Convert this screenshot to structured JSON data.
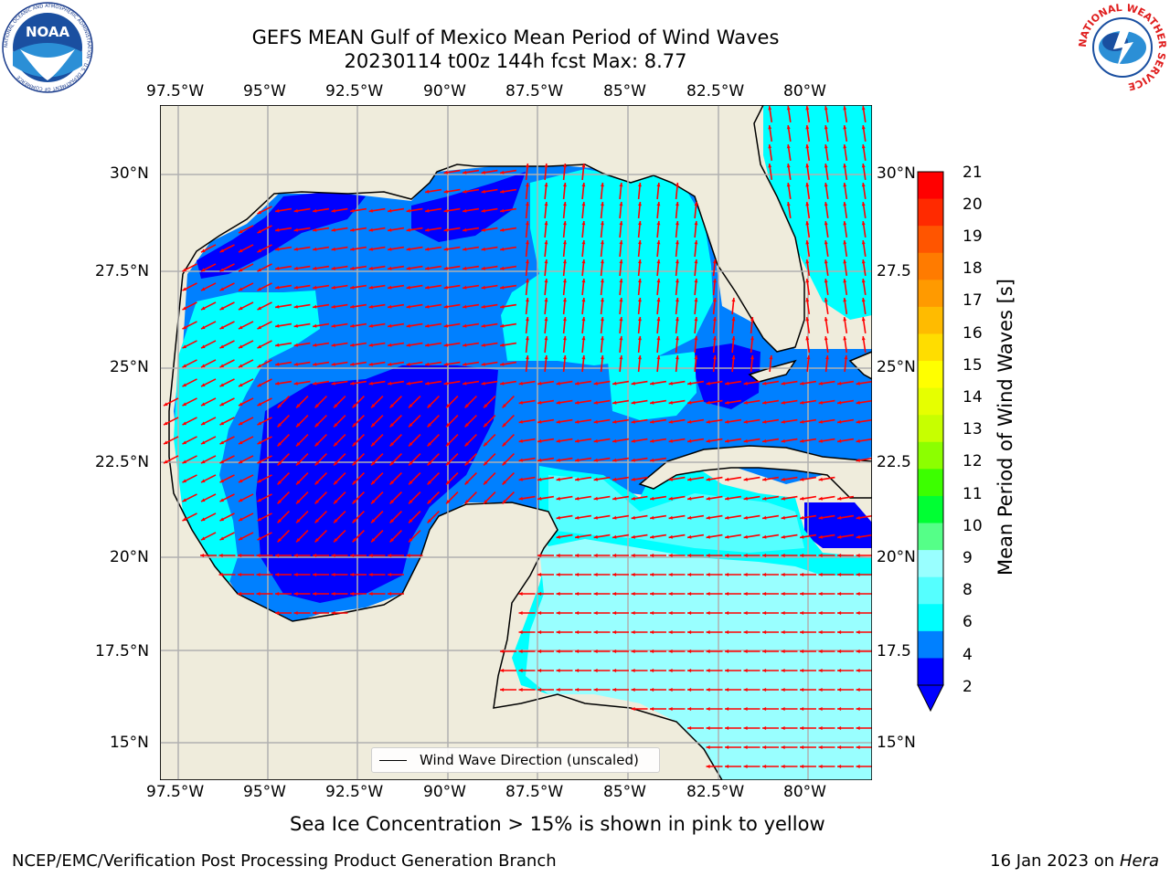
{
  "title_line1": "GEFS MEAN Gulf of Mexico Mean Period of Wind Waves",
  "title_line2": "20230114 t00z 144h fcst   Max: 8.77",
  "lon_labels": [
    "97.5°W",
    "95°W",
    "92.5°W",
    "90°W",
    "87.5°W",
    "85°W",
    "82.5°W",
    "80°W"
  ],
  "lat_labels_left": [
    "30°N",
    "27.5°N",
    "25°N",
    "22.5°N",
    "20°N",
    "17.5°N",
    "15°N"
  ],
  "lat_labels_right": [
    "30°N",
    "27.5",
    "25°N",
    "22.5",
    "20°N",
    "17.5",
    "15°N"
  ],
  "colorbar": {
    "title": "Mean Period of Wind Waves [s]",
    "ticks": [
      "21",
      "20",
      "19",
      "18",
      "17",
      "16",
      "15",
      "14",
      "13",
      "12",
      "11",
      "10",
      "9",
      "8",
      "6",
      "4",
      "2"
    ],
    "colors": [
      "#ff0000",
      "#ff2a00",
      "#ff5500",
      "#ff7b00",
      "#ff9a00",
      "#ffbb00",
      "#ffdd00",
      "#ffff00",
      "#e6ff00",
      "#c7ff00",
      "#8cff00",
      "#3cff00",
      "#00ff33",
      "#55ff88",
      "#99ffff",
      "#55ffff",
      "#00ffff",
      "#0080ff",
      "#0000ff"
    ]
  },
  "legend_label": "Wind Wave Direction (unscaled)",
  "caption": "Sea Ice Concentration > 15% is shown in pink to yellow",
  "footer_left": "NCEP/EMC/Verification Post Processing Product Generation Branch",
  "footer_right_date": "16 Jan 2023 on ",
  "footer_right_host": "Hera",
  "logos": {
    "noaa_text": "NOAA",
    "noaa_ring": "NATIONAL OCEANIC AND ATMOSPHERIC ADMINISTRATION · U.S. DEPARTMENT OF COMMERCE",
    "nws_ring": "NATIONAL WEATHER SERVICE"
  },
  "map_colors": {
    "land": "#efecdc",
    "period_2_4": "#0080ff",
    "period_lt2": "#0000ff",
    "period_4_6": "#00ffff",
    "period_6_8": "#55ffff",
    "period_8_9": "#99ffff",
    "arrow": "#ff0000",
    "grid": "#b0b0b0"
  }
}
